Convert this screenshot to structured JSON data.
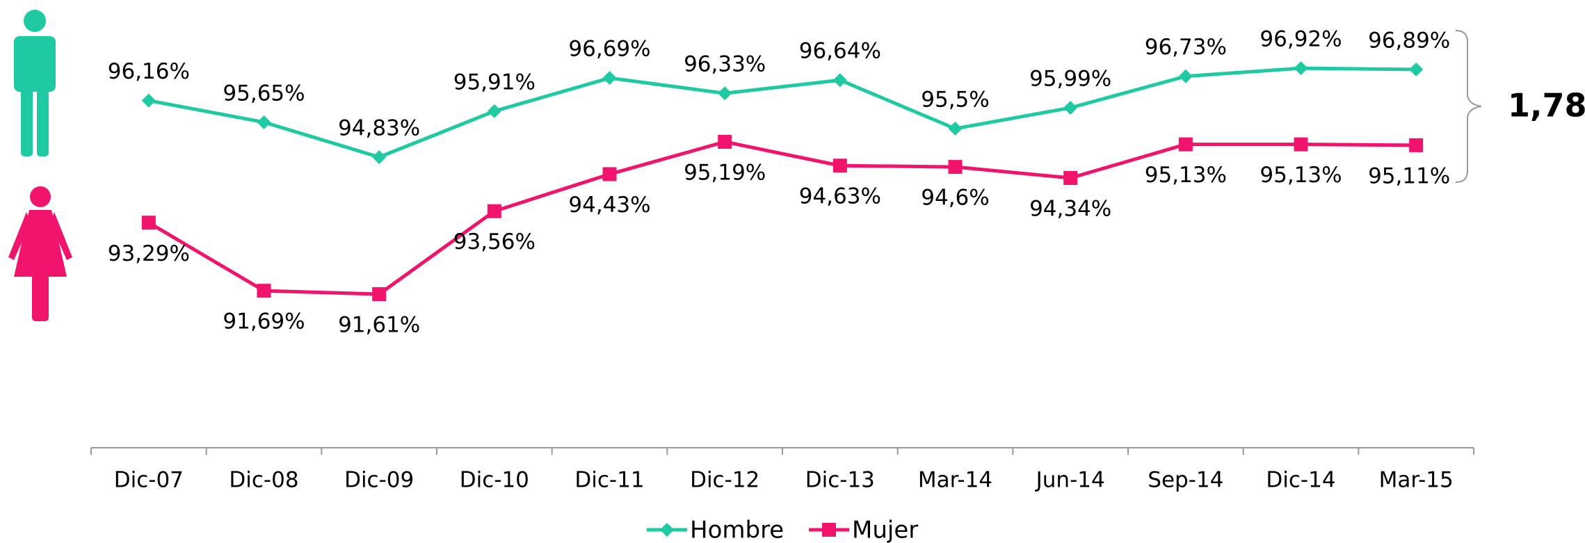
{
  "chart_data": {
    "type": "line",
    "categories": [
      "Dic-07",
      "Dic-08",
      "Dic-09",
      "Dic-10",
      "Dic-11",
      "Dic-12",
      "Dic-13",
      "Mar-14",
      "Jun-14",
      "Sep-14",
      "Dic-14",
      "Mar-15"
    ],
    "series": [
      {
        "name": "Hombre",
        "color": "#1fc9a2",
        "marker": "diamond",
        "values": [
          96.16,
          95.65,
          94.83,
          95.91,
          96.69,
          96.33,
          96.64,
          95.5,
          95.99,
          96.73,
          96.92,
          96.89
        ],
        "value_labels": [
          "96,16%",
          "95,65%",
          "94,83%",
          "95,91%",
          "96,69%",
          "96,33%",
          "96,64%",
          "95,5%",
          "95,99%",
          "96,73%",
          "96,92%",
          "96,89%"
        ]
      },
      {
        "name": "Mujer",
        "color": "#f0146c",
        "marker": "square",
        "values": [
          93.29,
          91.69,
          91.61,
          93.56,
          94.43,
          95.19,
          94.63,
          94.6,
          94.34,
          95.13,
          95.13,
          95.11
        ],
        "value_labels": [
          "93,29%",
          "91,69%",
          "91,61%",
          "93,56%",
          "94,43%",
          "95,19%",
          "94,63%",
          "94,6%",
          "94,34%",
          "95,13%",
          "95,13%",
          "95,11%"
        ]
      }
    ],
    "ylim": [
      88,
      98
    ],
    "annotation": "1,78",
    "legend": "bottom"
  }
}
